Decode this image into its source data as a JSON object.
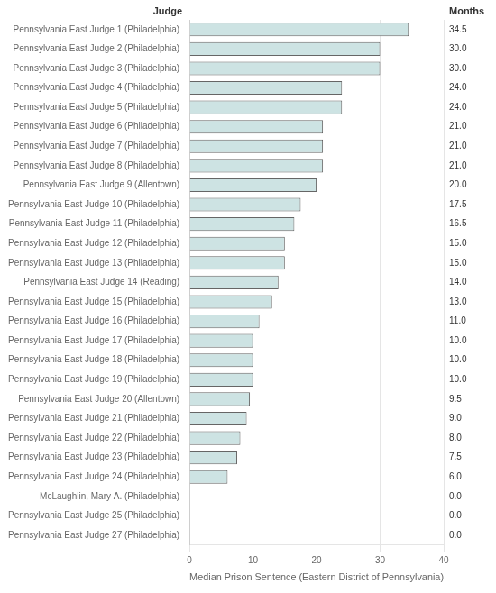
{
  "chart_data": {
    "type": "bar",
    "orientation": "horizontal",
    "categories": [
      "Pennsylvania East Judge 1 (Philadelphia)",
      "Pennsylvania East Judge 2 (Philadelphia)",
      "Pennsylvania East Judge 3 (Philadelphia)",
      "Pennsylvania East Judge 4 (Philadelphia)",
      "Pennsylvania East Judge 5 (Philadelphia)",
      "Pennsylvania East Judge 6 (Philadelphia)",
      "Pennsylvania East Judge 7 (Philadelphia)",
      "Pennsylvania East Judge 8 (Philadelphia)",
      "Pennsylvania East Judge 9 (Allentown)",
      "Pennsylvania East Judge 10 (Philadelphia)",
      "Pennsylvania East Judge 11 (Philadelphia)",
      "Pennsylvania East Judge 12 (Philadelphia)",
      "Pennsylvania East Judge 13 (Philadelphia)",
      "Pennsylvania East Judge 14 (Reading)",
      "Pennsylvania East Judge 15 (Philadelphia)",
      "Pennsylvania East Judge 16 (Philadelphia)",
      "Pennsylvania East Judge 17 (Philadelphia)",
      "Pennsylvania East Judge 18 (Philadelphia)",
      "Pennsylvania East Judge 19 (Philadelphia)",
      "Pennsylvania East Judge 20 (Allentown)",
      "Pennsylvania East Judge 21 (Philadelphia)",
      "Pennsylvania East Judge 22 (Philadelphia)",
      "Pennsylvania East Judge 23 (Philadelphia)",
      "Pennsylvania East Judge 24 (Philadelphia)",
      "McLaughlin, Mary A. (Philadelphia)",
      "Pennsylvania East Judge 25 (Philadelphia)",
      "Pennsylvania East Judge 27 (Philadelphia)"
    ],
    "values": [
      34.5,
      30.0,
      30.0,
      24.0,
      24.0,
      21.0,
      21.0,
      21.0,
      20.0,
      17.5,
      16.5,
      15.0,
      15.0,
      14.0,
      13.0,
      11.0,
      10.0,
      10.0,
      10.0,
      9.5,
      9.0,
      8.0,
      7.5,
      6.0,
      0.0,
      0.0,
      0.0
    ],
    "value_labels": [
      "34.5",
      "30.0",
      "30.0",
      "24.0",
      "24.0",
      "21.0",
      "21.0",
      "21.0",
      "20.0",
      "17.5",
      "16.5",
      "15.0",
      "15.0",
      "14.0",
      "13.0",
      "11.0",
      "10.0",
      "10.0",
      "10.0",
      "9.5",
      "9.0",
      "8.0",
      "7.5",
      "6.0",
      "0.0",
      "0.0",
      "0.0"
    ],
    "data_labels": true,
    "color": "#cde3e3",
    "xlabel": "Median Prison Sentence (Eastern District of Pennsylvania)",
    "ylabel": "Judge",
    "annotations": [
      "Months"
    ],
    "xlim": [
      0,
      40
    ],
    "xticks": [
      0,
      10,
      20,
      30,
      40
    ],
    "grid": true
  }
}
